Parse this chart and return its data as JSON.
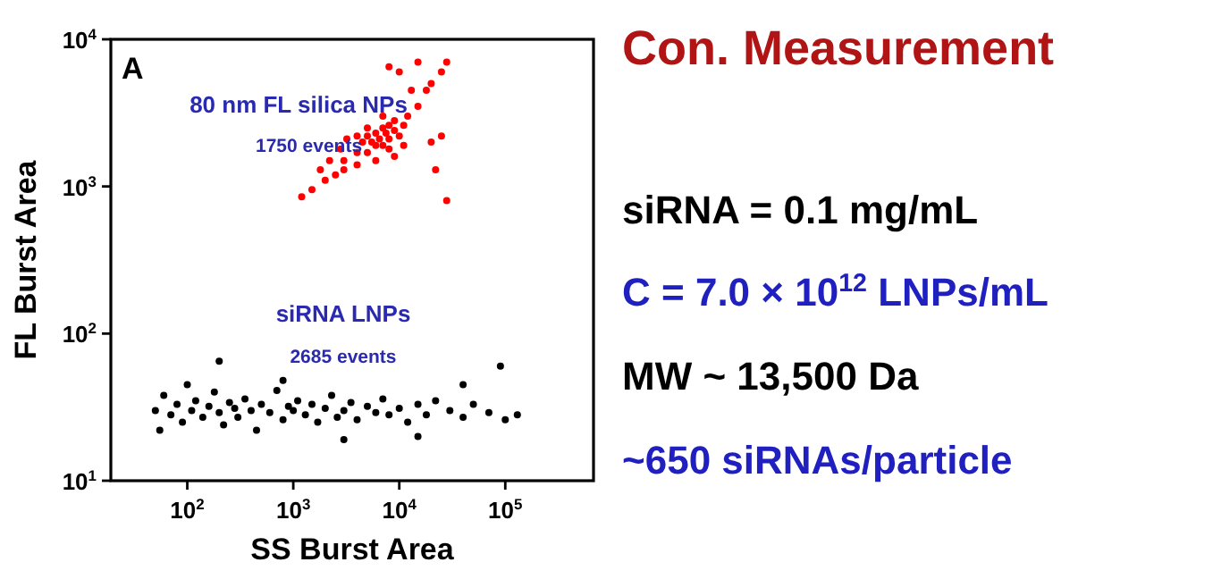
{
  "chart_data": [
    {
      "type": "scatter",
      "xlabel": "SS Burst Area",
      "ylabel": "FL Burst Area",
      "log": "xy",
      "marker": "circle",
      "grid": false,
      "xlim": [
        19,
        680000
      ],
      "ylim": [
        10,
        10000
      ],
      "xticks": [
        {
          "value": 100,
          "label": "10$^{2}$"
        },
        {
          "value": 1000,
          "label": "10$^{3}$"
        },
        {
          "value": 10000,
          "label": "10$^{4}$"
        },
        {
          "value": 100000,
          "label": "10$^{5}$"
        }
      ],
      "yticks": [
        {
          "value": 10,
          "label": "10$^{1}$"
        },
        {
          "value": 100,
          "label": "10$^{2}$"
        },
        {
          "value": 1000,
          "label": "10$^{3}$"
        },
        {
          "value": 10000,
          "label": "10$^{4}$"
        }
      ],
      "annotations": [
        "A",
        "80 nm FL silica NPs",
        "1750 events",
        "siRNA LNPs",
        "2685 events"
      ],
      "series": [
        {
          "color": "#ff0000",
          "x": [
            3000,
            4000,
            4500,
            5000,
            5500,
            6000,
            6500,
            7000,
            7500,
            8000,
            9000,
            10000,
            4000,
            5000,
            6000,
            7000,
            8000,
            3000,
            2500,
            2000,
            1500,
            1200,
            1800,
            2200,
            2800,
            3200,
            9000,
            11000,
            12000,
            15000,
            18000,
            20000,
            25000,
            28000,
            15000,
            10000,
            8000,
            13000,
            20000,
            25000,
            22000,
            28000,
            9000,
            11000,
            6000,
            5000,
            4000,
            7000,
            8000
          ],
          "values": [
            1500,
            1700,
            2000,
            2200,
            2000,
            2300,
            2100,
            2500,
            2300,
            2600,
            2400,
            2200,
            1400,
            1700,
            1900,
            1900,
            2100,
            1300,
            1200,
            1100,
            950,
            850,
            1300,
            1500,
            1800,
            2100,
            2800,
            2600,
            3000,
            3500,
            4500,
            5000,
            6000,
            7000,
            7000,
            6000,
            6500,
            4500,
            2000,
            2200,
            1300,
            800,
            1600,
            1900,
            1500,
            2500,
            2200,
            3000,
            1800
          ]
        },
        {
          "color": "#000000",
          "x": [
            50,
            55,
            60,
            70,
            80,
            90,
            100,
            110,
            120,
            140,
            160,
            180,
            200,
            220,
            250,
            280,
            300,
            350,
            400,
            450,
            500,
            600,
            700,
            800,
            900,
            1000,
            1100,
            1300,
            1500,
            1700,
            2000,
            2300,
            2600,
            3000,
            3500,
            4000,
            5000,
            6000,
            7000,
            8000,
            10000,
            12000,
            15000,
            18000,
            22000,
            30000,
            40000,
            50000,
            70000,
            100000,
            130000,
            90000,
            200,
            15000,
            3000,
            800,
            40000
          ],
          "values": [
            30,
            22,
            38,
            28,
            33,
            25,
            45,
            30,
            35,
            27,
            32,
            40,
            29,
            24,
            34,
            31,
            27,
            36,
            30,
            22,
            33,
            29,
            41,
            26,
            32,
            30,
            35,
            28,
            33,
            25,
            31,
            38,
            27,
            30,
            34,
            26,
            32,
            29,
            36,
            28,
            31,
            25,
            33,
            28,
            35,
            30,
            27,
            33,
            29,
            26,
            28,
            60,
            65,
            20,
            19,
            48,
            45
          ]
        }
      ]
    },
    {
      "type": "other",
      "title": "Con. Measurement",
      "annotations": [
        "siRNA = 0.1 mg/mL",
        "C = 7.0 × 10$^{12}$ LNPs/mL",
        "MW ~ 13,500 Da",
        "~650 siRNAs/particle"
      ],
      "colors": [
        "#b01414",
        "#000000",
        "#2020c0",
        "#000000",
        "#2020c0"
      ]
    }
  ]
}
